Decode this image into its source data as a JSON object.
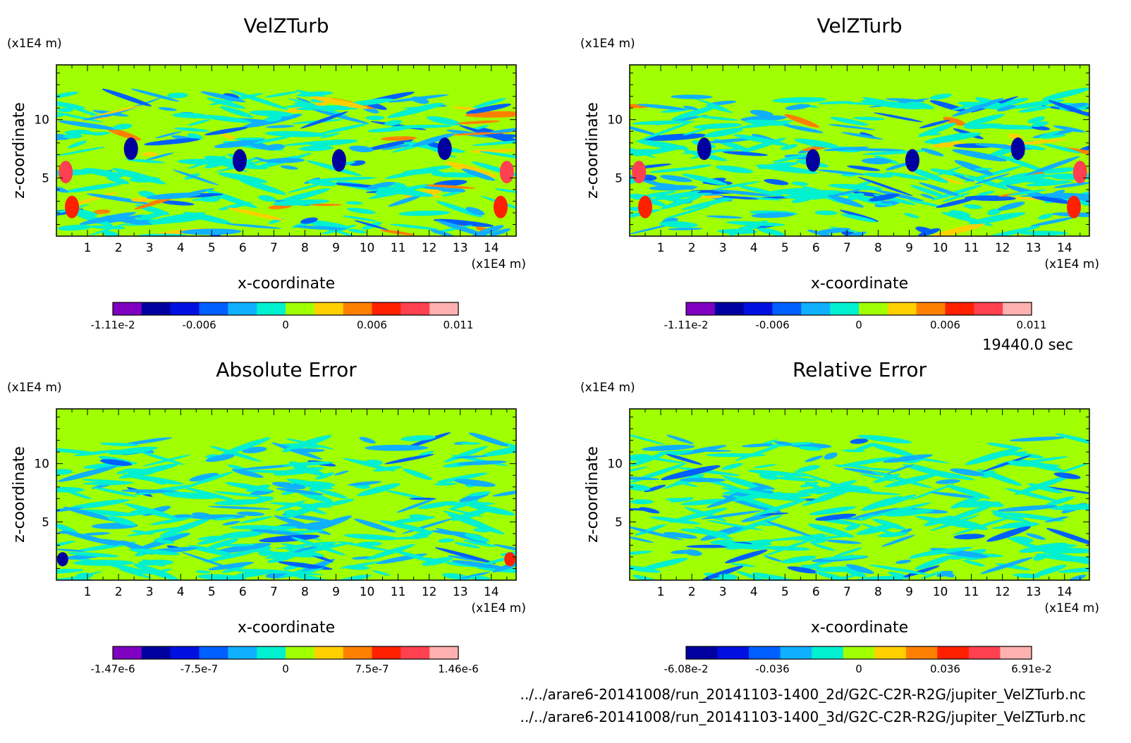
{
  "time_label": "19440.0 sec",
  "files": [
    "../../arare6-20141008/run_20141103-1400_2d/G2C-C2R-R2G/jupiter_VelZTurb.nc",
    "../../arare6-20141008/run_20141103-1400_3d/G2C-C2R-R2G/jupiter_VelZTurb.nc"
  ],
  "chart_data": [
    {
      "type": "heatmap",
      "title": "VelZTurb",
      "xlabel": "x-coordinate",
      "ylabel": "z-coordinate",
      "x_unit": "(x1E4 m)",
      "y_unit": "(x1E4 m)",
      "x_ticks": [
        "1",
        "2",
        "3",
        "4",
        "5",
        "6",
        "7",
        "8",
        "9",
        "10",
        "11",
        "12",
        "13",
        "14"
      ],
      "y_ticks": [
        "5",
        "10"
      ],
      "xlim": [
        0,
        14.8
      ],
      "ylim": [
        0,
        14.7
      ],
      "colorbar": {
        "labels": [
          "-1.11e-2",
          "-0.006",
          "0",
          "0.006",
          "0.011"
        ],
        "colors": [
          "#7f00c0",
          "#0000a0",
          "#0010e0",
          "#0060ff",
          "#10b0ff",
          "#00f0d0",
          "#a0ff00",
          "#ffd000",
          "#ff8000",
          "#ff2000",
          "#ff4050",
          "#ffb0b0"
        ]
      }
    },
    {
      "type": "heatmap",
      "title": "VelZTurb",
      "xlabel": "x-coordinate",
      "ylabel": "z-coordinate",
      "x_unit": "(x1E4 m)",
      "y_unit": "(x1E4 m)",
      "x_ticks": [
        "1",
        "2",
        "3",
        "4",
        "5",
        "6",
        "7",
        "8",
        "9",
        "10",
        "11",
        "12",
        "13",
        "14"
      ],
      "y_ticks": [
        "5",
        "10"
      ],
      "xlim": [
        0,
        14.8
      ],
      "ylim": [
        0,
        14.7
      ],
      "colorbar": {
        "labels": [
          "-1.11e-2",
          "-0.006",
          "0",
          "0.006",
          "0.011"
        ],
        "colors": [
          "#7f00c0",
          "#0000a0",
          "#0010e0",
          "#0060ff",
          "#10b0ff",
          "#00f0d0",
          "#a0ff00",
          "#ffd000",
          "#ff8000",
          "#ff2000",
          "#ff4050",
          "#ffb0b0"
        ]
      }
    },
    {
      "type": "heatmap",
      "title": "Absolute Error",
      "xlabel": "x-coordinate",
      "ylabel": "z-coordinate",
      "x_unit": "(x1E4 m)",
      "y_unit": "(x1E4 m)",
      "x_ticks": [
        "1",
        "2",
        "3",
        "4",
        "5",
        "6",
        "7",
        "8",
        "9",
        "10",
        "11",
        "12",
        "13",
        "14"
      ],
      "y_ticks": [
        "5",
        "10"
      ],
      "xlim": [
        0,
        14.8
      ],
      "ylim": [
        0,
        14.7
      ],
      "colorbar": {
        "labels": [
          "-1.47e-6",
          "-7.5e-7",
          "0",
          "7.5e-7",
          "1.46e-6"
        ],
        "colors": [
          "#7f00c0",
          "#0000a0",
          "#0010e0",
          "#0060ff",
          "#10b0ff",
          "#00f0d0",
          "#a0ff00",
          "#ffd000",
          "#ff8000",
          "#ff2000",
          "#ff4050",
          "#ffb0b0"
        ]
      }
    },
    {
      "type": "heatmap",
      "title": "Relative Error",
      "xlabel": "x-coordinate",
      "ylabel": "z-coordinate",
      "x_unit": "(x1E4 m)",
      "y_unit": "(x1E4 m)",
      "x_ticks": [
        "1",
        "2",
        "3",
        "4",
        "5",
        "6",
        "7",
        "8",
        "9",
        "10",
        "11",
        "12",
        "13",
        "14"
      ],
      "y_ticks": [
        "5",
        "10"
      ],
      "xlim": [
        0,
        14.8
      ],
      "ylim": [
        0,
        14.7
      ],
      "colorbar": {
        "labels": [
          "-6.08e-2",
          "-0.036",
          "0",
          "0.036",
          "6.91e-2"
        ],
        "colors": [
          "#0000a0",
          "#0010e0",
          "#0060ff",
          "#10b0ff",
          "#00f0d0",
          "#a0ff00",
          "#ffd000",
          "#ff8000",
          "#ff2000",
          "#ff4050",
          "#ffb0b0"
        ]
      }
    }
  ]
}
